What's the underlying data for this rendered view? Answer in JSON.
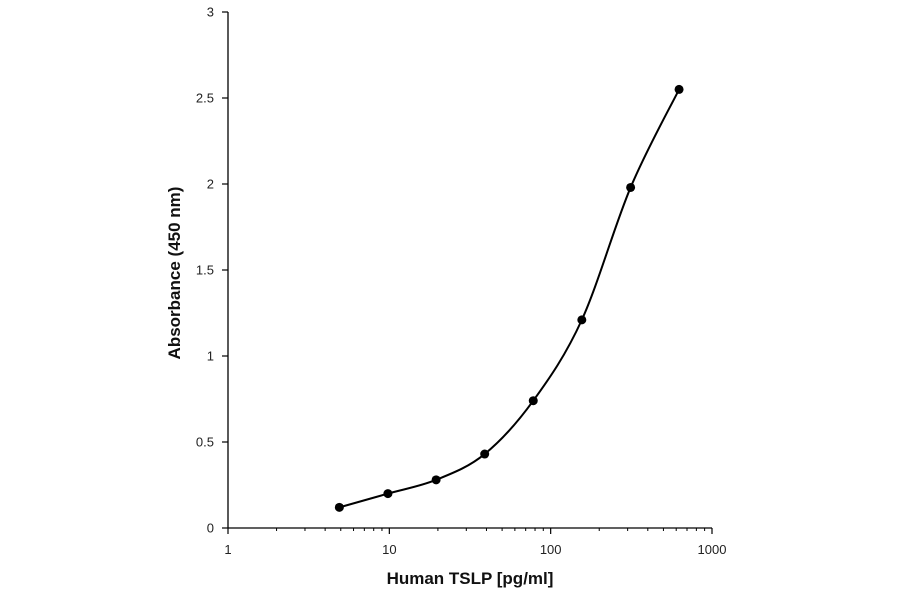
{
  "chart_data": {
    "type": "line",
    "xlabel": "Human TSLP [pg/ml]",
    "ylabel": "Absorbance (450 nm)",
    "x_scale": "log",
    "xlim": [
      1,
      1000
    ],
    "ylim": [
      0,
      3
    ],
    "x_ticks": [
      "1",
      "10",
      "100",
      "1000"
    ],
    "y_ticks": [
      "0",
      "0.5",
      "1",
      "1.5",
      "2",
      "2.5",
      "3"
    ],
    "grid": false,
    "legend": "none",
    "series": [
      {
        "x": [
          4.9,
          9.8,
          19.5,
          39,
          78,
          156,
          313,
          625
        ],
        "y": [
          0.12,
          0.2,
          0.28,
          0.43,
          0.74,
          1.21,
          1.98,
          2.55
        ],
        "color": "#000000",
        "marker": "circle",
        "smooth": true
      }
    ]
  }
}
